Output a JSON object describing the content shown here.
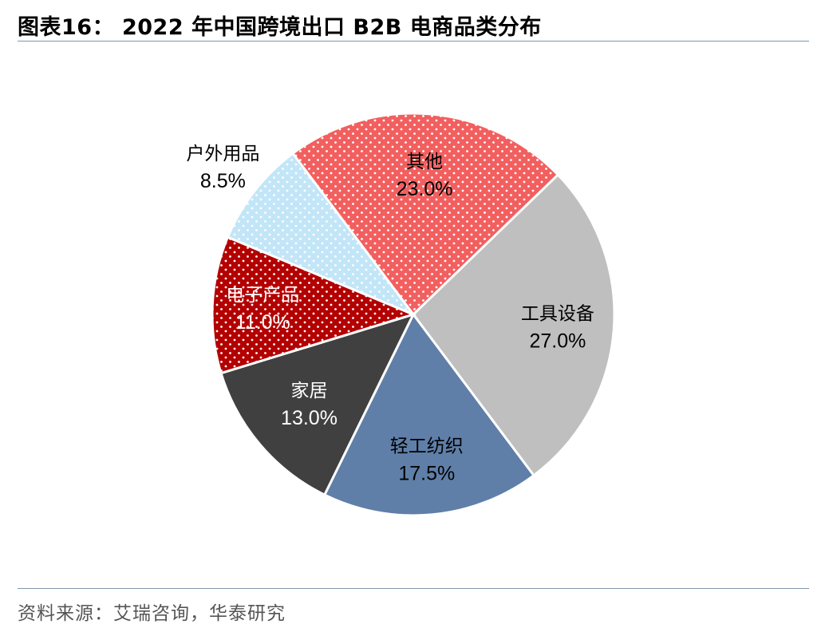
{
  "title": "图表16： 2022 年中国跨境出口 B2B 电商品类分布",
  "source": "资料来源：艾瑞咨询，华泰研究",
  "chart_data": {
    "type": "pie",
    "start_angle_deg": 46,
    "direction": "clockwise",
    "slices": [
      {
        "name": "工具设备",
        "value": 27.0,
        "label": "27.0%",
        "color": "#bfbfbf",
        "pattern": "none",
        "label_color": "#000000"
      },
      {
        "name": "轻工纺织",
        "value": 17.5,
        "label": "17.5%",
        "color": "#5f7fa8",
        "pattern": "none",
        "label_color": "#000000"
      },
      {
        "name": "家居",
        "value": 13.0,
        "label": "13.0%",
        "color": "#404040",
        "pattern": "none",
        "label_color": "#ffffff"
      },
      {
        "name": "电子产品",
        "value": 11.0,
        "label": "11.0%",
        "color": "#b30000",
        "pattern": "dots",
        "label_color": "#ffffff"
      },
      {
        "name": "户外用品",
        "value": 8.5,
        "label": "8.5%",
        "color": "#c2e6f7",
        "pattern": "dots",
        "label_color": "#000000"
      },
      {
        "name": "其他",
        "value": 23.0,
        "label": "23.0%",
        "color": "#f25f5f",
        "pattern": "dots",
        "label_color": "#000000"
      }
    ]
  }
}
